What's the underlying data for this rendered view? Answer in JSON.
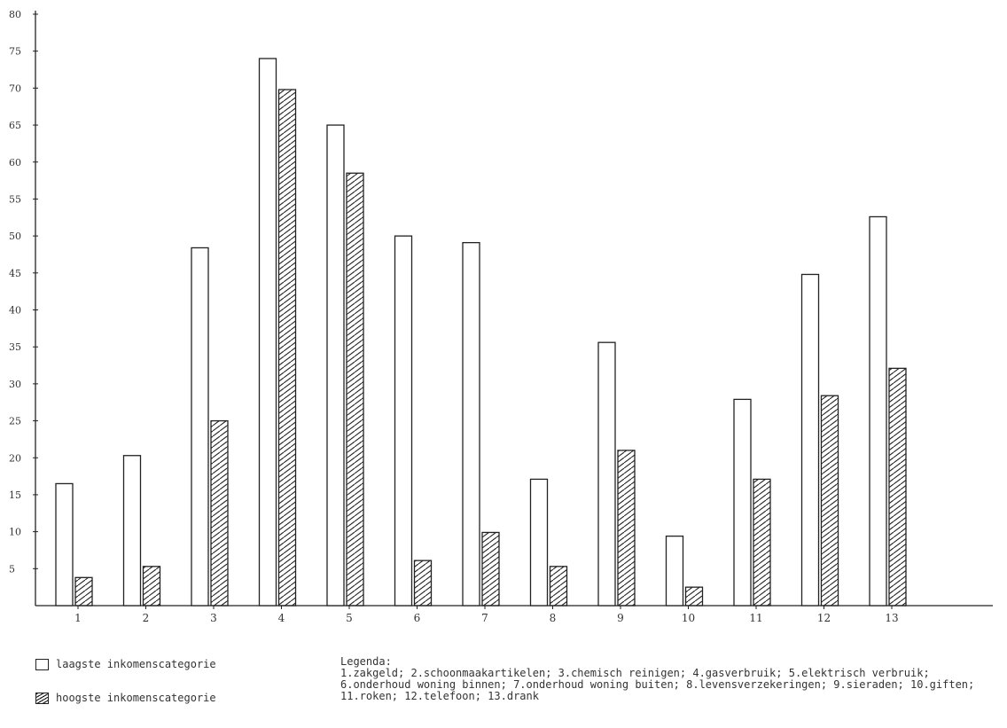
{
  "chart_data": {
    "type": "bar",
    "categories": [
      "1",
      "2",
      "3",
      "4",
      "5",
      "6",
      "7",
      "8",
      "9",
      "10",
      "11",
      "12",
      "13"
    ],
    "series": [
      {
        "name": "laagste inkomenscategorie",
        "values": [
          16.5,
          20.3,
          48.4,
          74,
          65,
          50,
          49.1,
          17.1,
          35.6,
          9.4,
          27.9,
          44.8,
          52.6
        ]
      },
      {
        "name": "hoogste inkomenscategorie",
        "values": [
          3.8,
          5.3,
          25,
          69.8,
          58.5,
          6.1,
          9.9,
          5.3,
          21,
          2.5,
          17.1,
          28.4,
          32.1
        ]
      }
    ],
    "y_ticks": [
      "5",
      "10",
      "15",
      "20",
      "25",
      "30",
      "35",
      "40",
      "45",
      "50",
      "55",
      "60",
      "65",
      "70",
      "75",
      "80"
    ],
    "ylim": [
      0,
      80
    ],
    "title": "",
    "xlabel": "",
    "ylabel": "",
    "grid": false,
    "colors": {
      "laagste": "#ffffff",
      "hoogste_hatch": "#222222",
      "stroke": "#222222"
    }
  },
  "legend": {
    "series_keys": [
      {
        "label": "laagste inkomenscategorie",
        "style": "open"
      },
      {
        "label": "hoogste inkomenscategorie",
        "style": "hatched"
      }
    ],
    "notes_title": "Legenda:",
    "notes_text": "1.zakgeld; 2.schoonmaakartikelen; 3.chemisch reinigen; 4.gasverbruik; 5.elektrisch verbruik; 6.onderhoud woning binnen; 7.onderhoud woning buiten; 8.levensverzekeringen; 9.sieraden; 10.giften; 11.roken; 12.telefoon; 13.drank"
  }
}
